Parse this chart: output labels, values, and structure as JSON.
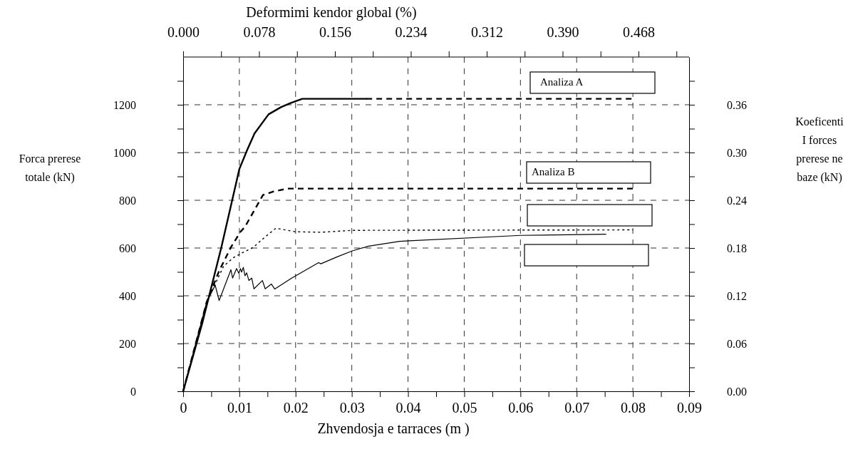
{
  "chart_data": {
    "type": "line",
    "xlabel": "Zhvendosja e tarraces (m )",
    "x2label": "Deformimi kendor global (%)",
    "ylabel": "Forca prerese\ntotale  (kN)",
    "y2label": "Koeficenti\nI forces\nprerese ne\nbaze (kN)",
    "xlim": [
      0,
      0.09
    ],
    "xticks": [
      0,
      {
        "value": 0.005,
        "label": null
      },
      {
        "value": 0.01,
        "label": "0.01"
      },
      {
        "value": 0.015,
        "label": null
      },
      {
        "value": 0.02,
        "label": "0.02"
      },
      {
        "value": 0.025,
        "label": null
      },
      {
        "value": 0.03,
        "label": "0.03"
      },
      {
        "value": 0.035,
        "label": null
      },
      {
        "value": 0.04,
        "label": "0.04"
      },
      {
        "value": 0.045,
        "label": null
      },
      {
        "value": 0.05,
        "label": "0.05"
      },
      {
        "value": 0.055,
        "label": null
      },
      {
        "value": 0.06,
        "label": "0.06"
      },
      {
        "value": 0.065,
        "label": null
      },
      {
        "value": 0.07,
        "label": "0.07"
      },
      {
        "value": 0.075,
        "label": null
      },
      {
        "value": 0.08,
        "label": "0.08"
      },
      {
        "value": 0.085,
        "label": null
      },
      {
        "value": 0.09,
        "label": "0.09"
      }
    ],
    "x2lim": [
      0,
      0.52
    ],
    "x2ticks": [
      {
        "value": 0,
        "label": "0.000"
      },
      {
        "value": 0.039,
        "label": null
      },
      0.078,
      {
        "value": 0.117,
        "label": null
      },
      0.156,
      {
        "value": 0.195,
        "label": null
      },
      0.234,
      {
        "value": 0.273,
        "label": null
      },
      0.312,
      {
        "value": 0.351,
        "label": null
      },
      {
        "value": 0.39,
        "label": "0.390"
      },
      {
        "value": 0.429,
        "label": null
      },
      0.468,
      {
        "value": 0.507,
        "label": null
      }
    ],
    "ylim": [
      0,
      1400
    ],
    "yticks": [
      0,
      {
        "value": 100,
        "label": null
      },
      200,
      {
        "value": 300,
        "label": null
      },
      400,
      {
        "value": 500,
        "label": null
      },
      600,
      {
        "value": 700,
        "label": null
      },
      800,
      {
        "value": 900,
        "label": null
      },
      1000,
      {
        "value": 1100,
        "label": null
      },
      1200,
      {
        "value": 1300,
        "label": null
      }
    ],
    "y2lim": [
      0,
      0.42
    ],
    "y2ticks": [
      {
        "value": 0,
        "label": "0.00"
      },
      {
        "value": 0.03,
        "label": null
      },
      0.06,
      {
        "value": 0.09,
        "label": null
      },
      0.12,
      {
        "value": 0.15,
        "label": null
      },
      0.18,
      {
        "value": 0.21,
        "label": null
      },
      0.24,
      {
        "value": 0.27,
        "label": null
      },
      {
        "value": 0.3,
        "label": "0.30"
      },
      {
        "value": 0.33,
        "label": null
      },
      0.36,
      {
        "value": 0.39,
        "label": null
      }
    ],
    "grid": true,
    "marker": "none",
    "series": [
      {
        "name": "Analiza A",
        "color": "#000000",
        "line_style": "solid",
        "x": [
          0,
          0.0034,
          0.0068,
          0.01,
          0.0114,
          0.0127,
          0.0152,
          0.0174,
          0.0191,
          0.0212,
          0.0326
        ],
        "values": [
          0,
          285,
          603,
          931,
          1011,
          1080,
          1160,
          1190,
          1207,
          1225,
          1225
        ]
      },
      {
        "color": "#000000",
        "line_style": "dashed",
        "x": [
          0.0326,
          0.08
        ],
        "values": [
          1225,
          1225
        ]
      },
      {
        "name": "Analiza B",
        "color": "#000000",
        "line_style": "dashed",
        "x": [
          0,
          0.0042,
          0.0064,
          0.0085,
          0.0102,
          0.011,
          0.0123,
          0.0142,
          0.0161,
          0.0186,
          0.03,
          0.08
        ],
        "values": [
          0,
          375,
          504,
          603,
          668,
          689,
          743,
          822,
          837,
          849,
          849,
          849
        ]
      },
      {
        "color": "#000000",
        "line_style": "dotted",
        "x": [
          0,
          0.0042,
          0.0072,
          0.0089,
          0.0106,
          0.0125,
          0.0144,
          0.0165,
          0.02,
          0.0246,
          0.0301,
          0.08
        ],
        "values": [
          0,
          375,
          524,
          559,
          581,
          603,
          643,
          683,
          668,
          666,
          674,
          676
        ]
      },
      {
        "color": "#000000",
        "line_style": "solid",
        "x": [
          0,
          0.0042,
          0.0057,
          0.0064,
          0.0085,
          0.0088,
          0.0095,
          0.0099,
          0.0102,
          0.0104,
          0.0107,
          0.011,
          0.0113,
          0.0117,
          0.0122,
          0.0126,
          0.0141,
          0.0146,
          0.0157,
          0.0163,
          0.0193,
          0.0241,
          0.0245,
          0.0274,
          0.0301,
          0.033,
          0.0385,
          0.0402,
          0.0601,
          0.0752
        ],
        "values": [
          0,
          375,
          444,
          380,
          509,
          474,
          514,
          494,
          514,
          499,
          519,
          484,
          496,
          464,
          474,
          429,
          464,
          429,
          449,
          428,
          474,
          539,
          534,
          563,
          588,
          608,
          628,
          630,
          653,
          658
        ]
      }
    ]
  }
}
